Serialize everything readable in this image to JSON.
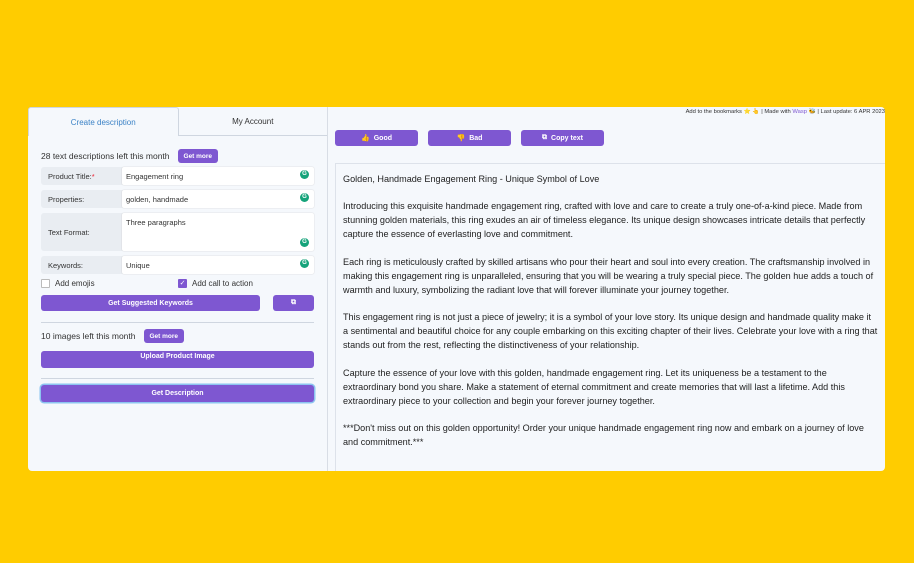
{
  "tabs": [
    "Create description",
    "My Account"
  ],
  "header_note": {
    "pre": "Add to the bookmarks ⭐ 👆 | Made with ",
    "link": "Wasp",
    "post": " 🐝 | Last update: 6 APR 2023"
  },
  "left": {
    "text_count": "28 text descriptions left this month",
    "get_more": "Get more",
    "fields": [
      {
        "label": "Product Title:",
        "required": "*",
        "value": "Engagement ring"
      },
      {
        "label": "Properties:",
        "value": "golden, handmade"
      },
      {
        "label": "Text Format:",
        "value": "Three paragraphs"
      },
      {
        "label": "Keywords:",
        "value": "Unique"
      }
    ],
    "add_emojis": {
      "label": "Add emojis",
      "checked": false
    },
    "add_cta": {
      "label": "Add call to action",
      "checked": true
    },
    "suggest_keywords": "Get Suggested Keywords",
    "image_count": "10 images left this month",
    "upload": "Upload Product Image",
    "get_description": "Get Description"
  },
  "actions": {
    "good": "Good",
    "bad": "Bad",
    "copy": "Copy text"
  },
  "output": {
    "title": "Golden, Handmade Engagement Ring - Unique Symbol of Love",
    "paragraphs": [
      "Introducing this exquisite handmade engagement ring, crafted with love and care to create a truly one-of-a-kind piece. Made from stunning golden materials, this ring exudes an air of timeless elegance. Its unique design showcases intricate details that perfectly capture the essence of everlasting love and commitment.",
      "Each ring is meticulously crafted by skilled artisans who pour their heart and soul into every creation. The craftsmanship involved in making this engagement ring is unparalleled, ensuring that you will be wearing a truly special piece. The golden hue adds a touch of warmth and luxury, symbolizing the radiant love that will forever illuminate your journey together.",
      "This engagement ring is not just a piece of jewelry; it is a symbol of your love story. Its unique design and handmade quality make it a sentimental and beautiful choice for any couple embarking on this exciting chapter of their lives. Celebrate your love with a ring that stands out from the rest, reflecting the distinctiveness of your relationship.",
      "Capture the essence of your love with this golden, handmade engagement ring. Let its uniqueness be a testament to the extraordinary bond you share. Make a statement of eternal commitment and create memories that will last a lifetime. Add this extraordinary piece to your collection and begin your forever journey together.",
      "***Don't miss out on this golden opportunity! Order your unique handmade engagement ring now and embark on a journey of love and commitment.***"
    ]
  }
}
